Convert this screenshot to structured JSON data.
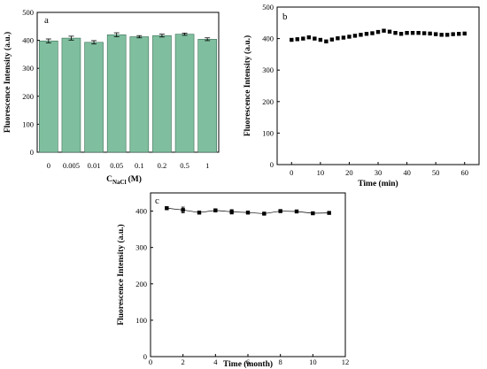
{
  "chart_data": [
    {
      "panel": "a",
      "type": "bar",
      "xlabel": "C",
      "xlabel_sub": "NaCl",
      "xlabel_unit": "(M)",
      "ylabel": "Fluorescence Intensity (a.u.)",
      "categories": [
        "0",
        "0.005",
        "0.01",
        "0.05",
        "0.1",
        "0.2",
        "0.5",
        "1"
      ],
      "values": [
        398,
        408,
        393,
        420,
        413,
        417,
        422,
        404
      ],
      "errors": [
        7,
        7,
        6,
        7,
        4,
        5,
        4,
        5
      ],
      "ylim": [
        0,
        500
      ],
      "yticks": [
        0,
        100,
        200,
        300,
        400,
        500
      ],
      "color": "#7fbf9f"
    },
    {
      "panel": "b",
      "type": "scatter",
      "xlabel": "Time (min)",
      "ylabel": "Fluorescence Intensity (a.u.)",
      "x": [
        0,
        2,
        4,
        6,
        8,
        10,
        12,
        14,
        16,
        18,
        20,
        22,
        24,
        26,
        28,
        30,
        32,
        34,
        36,
        38,
        40,
        42,
        44,
        46,
        48,
        50,
        52,
        54,
        56,
        58,
        60
      ],
      "y": [
        396,
        398,
        400,
        404,
        400,
        396,
        391,
        397,
        401,
        403,
        406,
        409,
        412,
        415,
        417,
        421,
        425,
        422,
        418,
        415,
        418,
        418,
        418,
        417,
        416,
        414,
        412,
        412,
        414,
        415,
        416
      ],
      "xlim": [
        -5,
        65
      ],
      "ylim": [
        0,
        500
      ],
      "xticks": [
        0,
        10,
        20,
        30,
        40,
        50,
        60
      ],
      "yticks": [
        0,
        100,
        200,
        300,
        400,
        500
      ]
    },
    {
      "panel": "c",
      "type": "line",
      "xlabel": "Time (month)",
      "ylabel": "Fluorescence Intensity (a.u.)",
      "x": [
        1,
        2,
        3,
        4,
        5,
        6,
        7,
        8,
        9,
        10,
        11
      ],
      "y": [
        408,
        403,
        396,
        402,
        398,
        396,
        393,
        400,
        399,
        394,
        395
      ],
      "errors": [
        4,
        8,
        4,
        4,
        6,
        4,
        3,
        4,
        3,
        3,
        3
      ],
      "xlim": [
        0,
        12
      ],
      "ylim": [
        0,
        450
      ],
      "xticks": [
        0,
        2,
        4,
        6,
        8,
        10,
        12
      ],
      "yticks": [
        0,
        100,
        200,
        300,
        400
      ]
    }
  ]
}
